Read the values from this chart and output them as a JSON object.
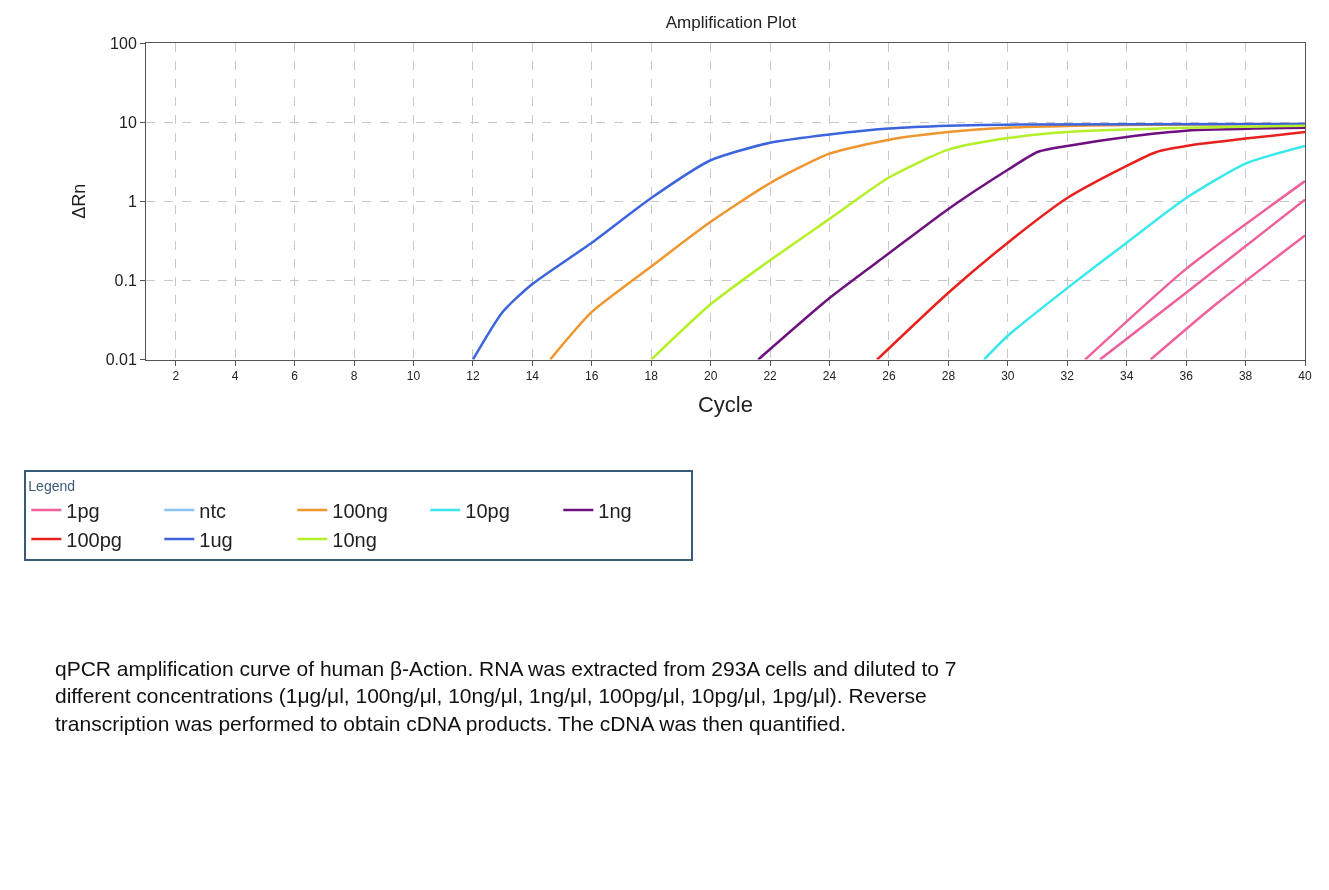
{
  "chart_data": {
    "type": "line",
    "title": "Amplification Plot",
    "xlabel": "Cycle",
    "ylabel": "ΔRn",
    "legend_title": "Legend",
    "legend": "bottom",
    "log": "y",
    "grid": true,
    "marker": "none",
    "line_style": "solid",
    "xlim": [
      1,
      40
    ],
    "xticks": [
      2,
      4,
      6,
      8,
      10,
      12,
      14,
      16,
      18,
      20,
      22,
      24,
      26,
      28,
      30,
      32,
      34,
      36,
      38,
      40
    ],
    "ylim": [
      0.01,
      100
    ],
    "yticks": [
      0.01,
      0.1,
      1,
      10,
      100
    ],
    "series": [
      {
        "name": "1pg",
        "color": "#f0609a",
        "x": [
          32.6,
          36,
          40
        ],
        "values": [
          0.01,
          0.14,
          1.8
        ]
      },
      {
        "name": "ntc",
        "color": "#88c4f0"
      },
      {
        "name": "100ng",
        "color": "#f0962e",
        "x": [
          14.6,
          16,
          18,
          20,
          22,
          24,
          26,
          28,
          30,
          34,
          40
        ],
        "values": [
          0.01,
          0.04,
          0.15,
          0.55,
          1.7,
          4,
          6,
          7.5,
          8.5,
          9.2,
          9.5
        ]
      },
      {
        "name": "10pg",
        "color": "#38e8ec",
        "x": [
          29.2,
          30,
          32,
          34,
          36,
          38,
          40
        ],
        "values": [
          0.01,
          0.02,
          0.08,
          0.3,
          1.1,
          3,
          5
        ]
      },
      {
        "name": "1ng",
        "color": "#6e1080",
        "x": [
          21.6,
          24,
          26,
          28,
          30,
          31,
          32,
          34,
          36,
          40
        ],
        "values": [
          0.01,
          0.06,
          0.22,
          0.8,
          2.5,
          4.2,
          5,
          6.5,
          7.8,
          8.5
        ]
      },
      {
        "name": "100pg",
        "color": "#e8201e",
        "x": [
          25.6,
          28,
          30,
          32,
          34,
          35,
          36,
          38,
          40
        ],
        "values": [
          0.01,
          0.07,
          0.3,
          1.1,
          2.8,
          4.2,
          5,
          6.2,
          7.5
        ]
      },
      {
        "name": "1ug",
        "color": "#3c64dc",
        "x": [
          12,
          13,
          14,
          16,
          18,
          20,
          22,
          24,
          26,
          28,
          30,
          40
        ],
        "values": [
          0.01,
          0.04,
          0.09,
          0.3,
          1.1,
          3.3,
          5.5,
          7,
          8.3,
          9,
          9.3,
          9.5
        ]
      },
      {
        "name": "10ng",
        "color": "#b4f028",
        "x": [
          18,
          20,
          22,
          24,
          26,
          28,
          30,
          32,
          36,
          40
        ],
        "values": [
          0.01,
          0.05,
          0.18,
          0.6,
          2,
          4.5,
          6.3,
          7.5,
          8.5,
          9
        ]
      },
      {
        "color": "#f0609a",
        "x": [
          33.1,
          36,
          40
        ],
        "values": [
          0.01,
          0.07,
          1.05
        ]
      },
      {
        "color": "#f0609a",
        "x": [
          34.8,
          37,
          40
        ],
        "values": [
          0.01,
          0.05,
          0.37
        ]
      }
    ],
    "annotations": [
      "qPCR amplification curve of human β-Action. RNA was extracted from 293A cells and diluted to 7 different concentrations (1μg/μl, 100ng/μl, 10ng/μl, 1ng/μl, 100pg/μl, 10pg/μl, 1pg/μl). Reverse transcription was performed to obtain cDNA products. The cDNA was then quantified."
    ]
  }
}
